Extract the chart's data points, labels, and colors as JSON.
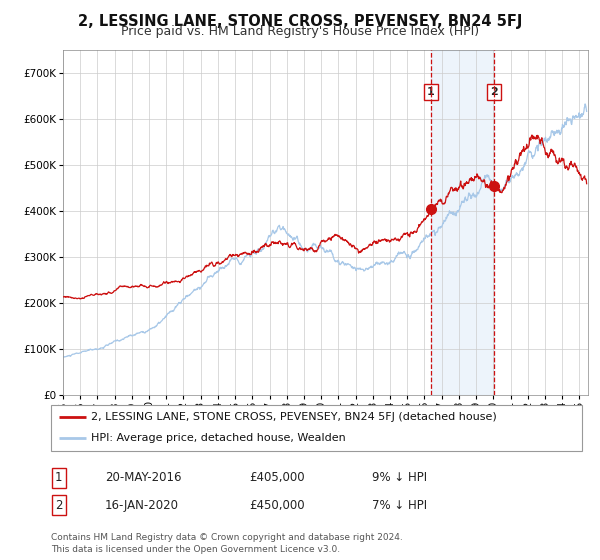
{
  "title": "2, LESSING LANE, STONE CROSS, PEVENSEY, BN24 5FJ",
  "subtitle": "Price paid vs. HM Land Registry's House Price Index (HPI)",
  "xlim_start": 1995.0,
  "xlim_end": 2025.5,
  "ylim": [
    0,
    750000
  ],
  "yticks": [
    0,
    100000,
    200000,
    300000,
    400000,
    500000,
    600000,
    700000
  ],
  "ytick_labels": [
    "£0",
    "£100K",
    "£200K",
    "£300K",
    "£400K",
    "£500K",
    "£600K",
    "£700K"
  ],
  "sale1_date_num": 2016.38,
  "sale1_price": 405000,
  "sale1_label": "1",
  "sale2_date_num": 2020.04,
  "sale2_price": 450000,
  "sale2_label": "2",
  "hpi_color": "#a8c8e8",
  "price_color": "#cc1111",
  "dot_color": "#cc1111",
  "vline_color": "#cc1111",
  "shade_color": "#cce0f5",
  "grid_color": "#cccccc",
  "bg_color": "#ffffff",
  "legend_line1": "2, LESSING LANE, STONE CROSS, PEVENSEY, BN24 5FJ (detached house)",
  "legend_line2": "HPI: Average price, detached house, Wealden",
  "table_entries": [
    {
      "num": "1",
      "date": "20-MAY-2016",
      "price": "£405,000",
      "pct": "9% ↓ HPI"
    },
    {
      "num": "2",
      "date": "16-JAN-2020",
      "price": "£450,000",
      "pct": "7% ↓ HPI"
    }
  ],
  "footer": "Contains HM Land Registry data © Crown copyright and database right 2024.\nThis data is licensed under the Open Government Licence v3.0.",
  "title_fontsize": 10.5,
  "subtitle_fontsize": 9,
  "tick_fontsize": 7.5,
  "legend_fontsize": 8,
  "table_fontsize": 8.5,
  "footer_fontsize": 6.5
}
